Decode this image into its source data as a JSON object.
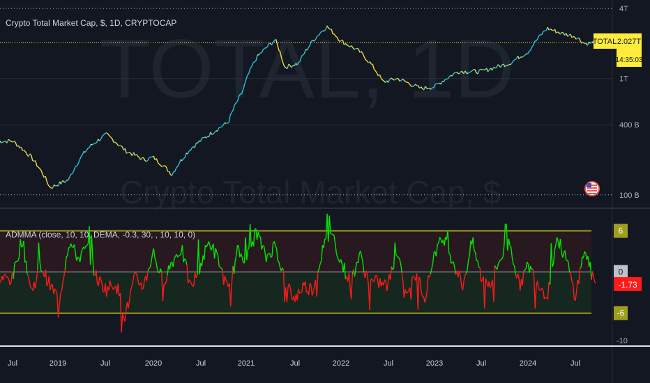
{
  "main_pane": {
    "legend": "Crypto Total Market Cap, $, 1D, CRYPTOCAP",
    "watermark_symbol": "TOTAL, 1D",
    "watermark_name": "Crypto Total Market Cap, $",
    "symbol_tag": "TOTAL",
    "price_value": "2.027T",
    "price_countdown": "14:35:03",
    "flag_icon": "us-flag-icon"
  },
  "indicator_pane": {
    "legend": "ADMMA (close, 10, 10, DEMA, -0.3, 30, , 10, 10, 0)",
    "current_value": "-1.73"
  },
  "colors": {
    "background": "#131722",
    "price_up": "#26c6da",
    "price_down": "#fdd835",
    "osc_up": "#00e600",
    "osc_down": "#ff1a1a",
    "band": "#9e9e1f",
    "price_tag": "#ffeb3b"
  },
  "chart_data": [
    {
      "type": "line",
      "title": "Crypto Total Market Cap, $, 1D, CRYPTOCAP",
      "y_scale": "log",
      "y_ticks": [
        "4T",
        "1T",
        "400 B",
        "100 B"
      ],
      "y_tick_values": [
        4000,
        1000,
        400,
        100
      ],
      "ylim": [
        80,
        4600
      ],
      "units": "billions USD",
      "x": [
        2018.5,
        2018.7,
        2018.9,
        2019.0,
        2019.1,
        2019.3,
        2019.5,
        2019.7,
        2019.9,
        2020.0,
        2020.2,
        2020.4,
        2020.6,
        2020.8,
        2020.95,
        2021.1,
        2021.3,
        2021.4,
        2021.55,
        2021.7,
        2021.85,
        2022.0,
        2022.2,
        2022.45,
        2022.6,
        2022.85,
        2023.0,
        2023.25,
        2023.5,
        2023.8,
        2024.0,
        2024.2,
        2024.35,
        2024.5,
        2024.6,
        2024.7
      ],
      "values": [
        290,
        210,
        115,
        125,
        135,
        250,
        330,
        240,
        200,
        210,
        150,
        250,
        330,
        420,
        760,
        1500,
        2150,
        1250,
        1350,
        2100,
        2800,
        2100,
        1700,
        930,
        1000,
        820,
        850,
        1150,
        1150,
        1350,
        1700,
        2700,
        2450,
        2300,
        2000,
        2027
      ],
      "x_ticks": [
        "Jul",
        "2019",
        "Jul",
        "2020",
        "Jul",
        "2021",
        "Jul",
        "2022",
        "Jul",
        "2023",
        "Jul",
        "2024",
        "Jul"
      ],
      "last_value_label": "2.027T"
    },
    {
      "type": "line",
      "title": "ADMMA (close, 10, 10, DEMA, -0.3, 30, , 10, 10, 0)",
      "y_ticks": [
        "6",
        "0",
        "-6",
        "-10"
      ],
      "y_tick_values": [
        6,
        0,
        -6,
        -10
      ],
      "ylim": [
        -10.5,
        9
      ],
      "bands": [
        6,
        0,
        -6
      ],
      "x": [
        2018.5,
        2018.6,
        2018.7,
        2018.8,
        2018.9,
        2019.0,
        2019.1,
        2019.2,
        2019.3,
        2019.4,
        2019.5,
        2019.6,
        2019.7,
        2019.8,
        2019.9,
        2020.0,
        2020.1,
        2020.2,
        2020.3,
        2020.4,
        2020.5,
        2020.6,
        2020.7,
        2020.8,
        2020.9,
        2021.0,
        2021.1,
        2021.2,
        2021.3,
        2021.4,
        2021.5,
        2021.6,
        2021.7,
        2021.8,
        2021.9,
        2022.0,
        2022.1,
        2022.2,
        2022.3,
        2022.4,
        2022.5,
        2022.6,
        2022.7,
        2022.8,
        2022.9,
        2023.0,
        2023.1,
        2023.2,
        2023.3,
        2023.4,
        2023.5,
        2023.6,
        2023.7,
        2023.8,
        2023.9,
        2024.0,
        2024.1,
        2024.2,
        2024.3,
        2024.4,
        2024.5,
        2024.6,
        2024.7
      ],
      "values": [
        -1,
        5,
        -3,
        1,
        -2,
        -4,
        4.5,
        2,
        3.5,
        -1,
        -2.5,
        -1.5,
        -6.5,
        -1,
        -2,
        3,
        -1.5,
        1.5,
        3.5,
        -2.5,
        1,
        4.5,
        1.5,
        -3,
        3,
        2,
        6,
        2,
        4,
        -1,
        -4,
        -2,
        -2.5,
        3,
        6,
        1.5,
        -1.5,
        2.5,
        -1.5,
        -1.5,
        -2,
        3,
        -2.5,
        -0.5,
        -3.5,
        3,
        5,
        1.5,
        -2,
        4.5,
        -1,
        -1.5,
        2,
        4.5,
        -2,
        1,
        -1.5,
        -3.5,
        5,
        2,
        -3.5,
        3.5,
        -1.73
      ],
      "last_value_label": "-1.73"
    }
  ]
}
